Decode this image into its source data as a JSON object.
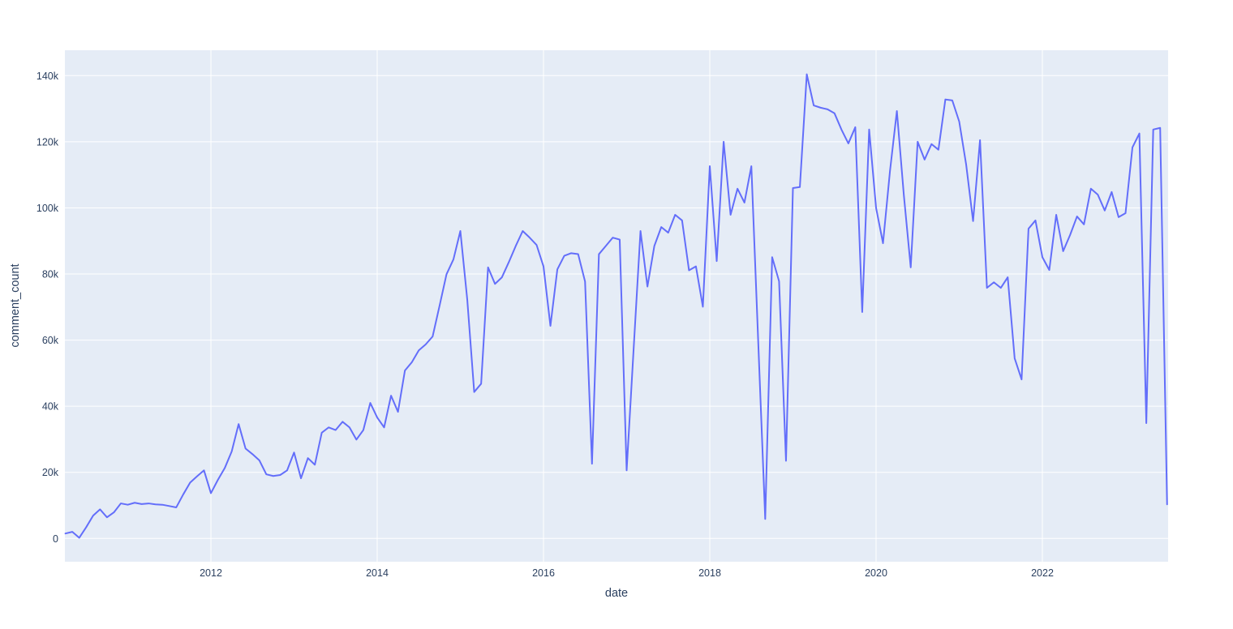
{
  "chart_data": {
    "type": "line",
    "xlabel": "date",
    "ylabel": "comment_count",
    "grid": true,
    "legend_position": "none",
    "x_range_years": [
      2010.25,
      2023.58
    ],
    "ylim": [
      -7000,
      147700
    ],
    "colors": {
      "line": "#636efa",
      "plot_background": "#e5ecf6",
      "paper_background": "#ffffff",
      "gridline": "#ffffff",
      "tick_text": "#2a3f5f"
    },
    "xticks": [
      {
        "year": 2012,
        "label": "2012"
      },
      {
        "year": 2014,
        "label": "2014"
      },
      {
        "year": 2016,
        "label": "2016"
      },
      {
        "year": 2018,
        "label": "2018"
      },
      {
        "year": 2020,
        "label": "2020"
      },
      {
        "year": 2022,
        "label": "2022"
      }
    ],
    "yticks": [
      {
        "value": 0,
        "label": "0"
      },
      {
        "value": 20000,
        "label": "20k"
      },
      {
        "value": 40000,
        "label": "40k"
      },
      {
        "value": 60000,
        "label": "60k"
      },
      {
        "value": 80000,
        "label": "80k"
      },
      {
        "value": 100000,
        "label": "100k"
      },
      {
        "value": 120000,
        "label": "120k"
      },
      {
        "value": 140000,
        "label": "140k"
      }
    ],
    "series": [
      {
        "name": "comment_count",
        "start": "2010-04",
        "frequency": "monthly",
        "values": [
          1500,
          2000,
          200,
          3400,
          6900,
          8800,
          6400,
          7900,
          10600,
          10200,
          10800,
          10400,
          10600,
          10300,
          10200,
          9800,
          9400,
          13300,
          16900,
          18800,
          20600,
          13700,
          17700,
          21300,
          26300,
          34600,
          27200,
          25500,
          23600,
          19400,
          18900,
          19200,
          20600,
          26000,
          18200,
          24300,
          22300,
          32000,
          33600,
          32800,
          35300,
          33600,
          29900,
          32800,
          41000,
          36600,
          33600,
          43200,
          38300,
          50800,
          53300,
          56900,
          58700,
          61100,
          70400,
          79900,
          84400,
          93000,
          72200,
          44300,
          46800,
          82000,
          77000,
          79000,
          83600,
          88500,
          93000,
          91000,
          88800,
          82300,
          64300,
          81400,
          85500,
          86300,
          86000,
          77700,
          22600,
          86000,
          88500,
          91000,
          90400,
          20600,
          57000,
          93000,
          76200,
          88500,
          94200,
          92500,
          97900,
          96200,
          81100,
          82300,
          70100,
          112600,
          83900,
          120000,
          97900,
          105800,
          101600,
          112600,
          59000,
          5900,
          85100,
          77800,
          23500,
          106000,
          106300,
          140400,
          131000,
          130300,
          129800,
          128600,
          123700,
          119500,
          124400,
          68500,
          123700,
          100000,
          89300,
          111000,
          129300,
          104000,
          82000,
          120000,
          114600,
          119300,
          117600,
          132800,
          132500,
          126100,
          113100,
          96000,
          120500,
          75800,
          77500,
          75800,
          79000,
          54500,
          48100,
          93700,
          96200,
          85100,
          81200,
          97900,
          86900,
          91800,
          97400,
          95000,
          105800,
          104000,
          99200,
          104800,
          97200,
          98400,
          118300,
          122500,
          34900,
          123700,
          124200,
          10300
        ]
      }
    ]
  }
}
